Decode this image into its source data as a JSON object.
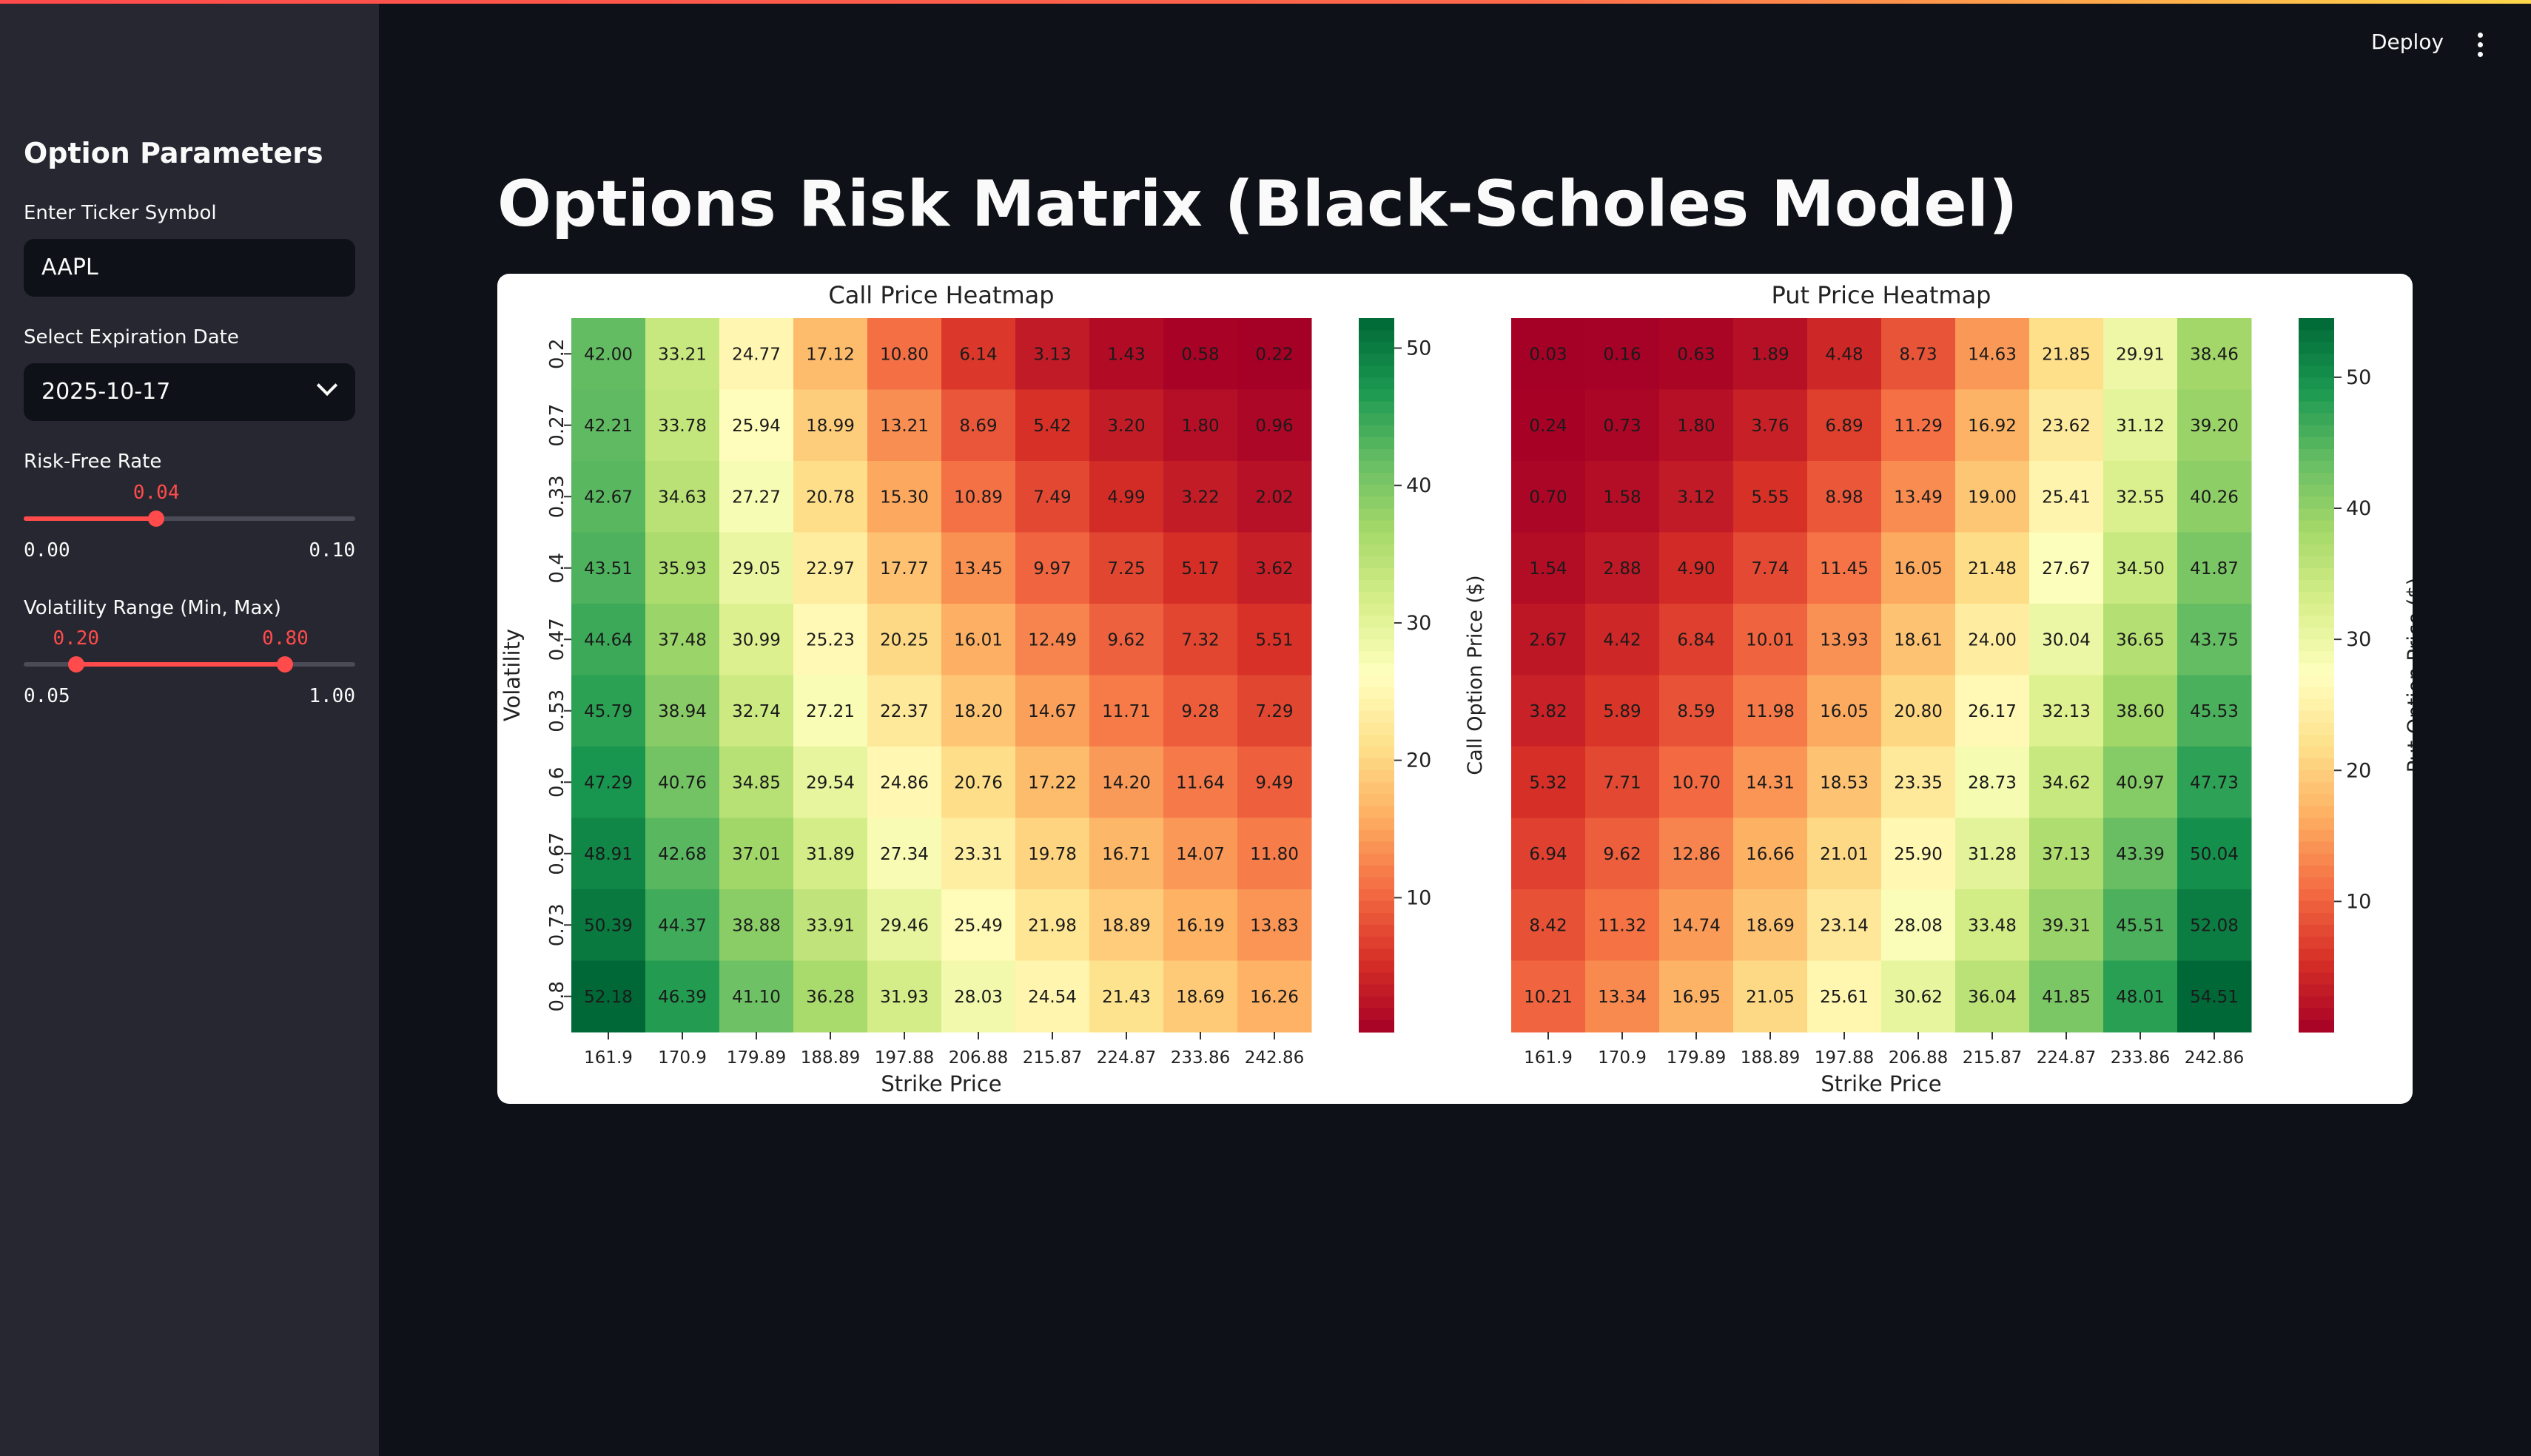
{
  "header": {
    "deploy_label": "Deploy",
    "menu_icon": "kebab-menu-icon"
  },
  "sidebar": {
    "title": "Option Parameters",
    "ticker": {
      "label": "Enter Ticker Symbol",
      "value": "AAPL"
    },
    "expiration": {
      "label": "Select Expiration Date",
      "value": "2025-10-17"
    },
    "risk_free_rate": {
      "label": "Risk-Free Rate",
      "value": "0.04",
      "min": "0.00",
      "max": "0.10",
      "fraction": 0.4
    },
    "volatility_range": {
      "label": "Volatility Range (Min, Max)",
      "low": "0.20",
      "high": "0.80",
      "min": "0.05",
      "max": "1.00",
      "low_fraction": 0.158,
      "high_fraction": 0.789
    }
  },
  "main": {
    "title": "Options Risk Matrix (Black-Scholes Model)"
  },
  "colors": {
    "accent": "#ff4b4b",
    "background": "#0e1117",
    "sidebar": "#262730"
  },
  "chart_data": [
    {
      "type": "heatmap",
      "title": "Call Price Heatmap",
      "xlabel": "Strike Price",
      "ylabel": "Volatility",
      "colorbar_label": "Call Option Price ($)",
      "colorbar_ticks": [
        10,
        20,
        30,
        40,
        50
      ],
      "colormap": "RdYlGn",
      "x": [
        "161.9",
        "170.9",
        "179.89",
        "188.89",
        "197.88",
        "206.88",
        "215.87",
        "224.87",
        "233.86",
        "242.86"
      ],
      "y": [
        "0.2",
        "0.27",
        "0.33",
        "0.4",
        "0.47",
        "0.53",
        "0.6",
        "0.67",
        "0.73",
        "0.8"
      ],
      "values": [
        [
          "42.00",
          "33.21",
          "24.77",
          "17.12",
          "10.80",
          "6.14",
          "3.13",
          "1.43",
          "0.58",
          "0.22"
        ],
        [
          "42.21",
          "33.78",
          "25.94",
          "18.99",
          "13.21",
          "8.69",
          "5.42",
          "3.20",
          "1.80",
          "0.96"
        ],
        [
          "42.67",
          "34.63",
          "27.27",
          "20.78",
          "15.30",
          "10.89",
          "7.49",
          "4.99",
          "3.22",
          "2.02"
        ],
        [
          "43.51",
          "35.93",
          "29.05",
          "22.97",
          "17.77",
          "13.45",
          "9.97",
          "7.25",
          "5.17",
          "3.62"
        ],
        [
          "44.64",
          "37.48",
          "30.99",
          "25.23",
          "20.25",
          "16.01",
          "12.49",
          "9.62",
          "7.32",
          "5.51"
        ],
        [
          "45.79",
          "38.94",
          "32.74",
          "27.21",
          "22.37",
          "18.20",
          "14.67",
          "11.71",
          "9.28",
          "7.29"
        ],
        [
          "47.29",
          "40.76",
          "34.85",
          "29.54",
          "24.86",
          "20.76",
          "17.22",
          "14.20",
          "11.64",
          "9.49"
        ],
        [
          "48.91",
          "42.68",
          "37.01",
          "31.89",
          "27.34",
          "23.31",
          "19.78",
          "16.71",
          "14.07",
          "11.80"
        ],
        [
          "50.39",
          "44.37",
          "38.88",
          "33.91",
          "29.46",
          "25.49",
          "21.98",
          "18.89",
          "16.19",
          "13.83"
        ],
        [
          "52.18",
          "46.39",
          "41.10",
          "36.28",
          "31.93",
          "28.03",
          "24.54",
          "21.43",
          "18.69",
          "16.26"
        ]
      ]
    },
    {
      "type": "heatmap",
      "title": "Put Price Heatmap",
      "xlabel": "Strike Price",
      "ylabel": "",
      "colorbar_label": "Put Option Price ($)",
      "colorbar_ticks": [
        10,
        20,
        30,
        40,
        50
      ],
      "colormap": "RdYlGn",
      "x": [
        "161.9",
        "170.9",
        "179.89",
        "188.89",
        "197.88",
        "206.88",
        "215.87",
        "224.87",
        "233.86",
        "242.86"
      ],
      "y": [],
      "values": [
        [
          "0.03",
          "0.16",
          "0.63",
          "1.89",
          "4.48",
          "8.73",
          "14.63",
          "21.85",
          "29.91",
          "38.46"
        ],
        [
          "0.24",
          "0.73",
          "1.80",
          "3.76",
          "6.89",
          "11.29",
          "16.92",
          "23.62",
          "31.12",
          "39.20"
        ],
        [
          "0.70",
          "1.58",
          "3.12",
          "5.55",
          "8.98",
          "13.49",
          "19.00",
          "25.41",
          "32.55",
          "40.26"
        ],
        [
          "1.54",
          "2.88",
          "4.90",
          "7.74",
          "11.45",
          "16.05",
          "21.48",
          "27.67",
          "34.50",
          "41.87"
        ],
        [
          "2.67",
          "4.42",
          "6.84",
          "10.01",
          "13.93",
          "18.61",
          "24.00",
          "30.04",
          "36.65",
          "43.75"
        ],
        [
          "3.82",
          "5.89",
          "8.59",
          "11.98",
          "16.05",
          "20.80",
          "26.17",
          "32.13",
          "38.60",
          "45.53"
        ],
        [
          "5.32",
          "7.71",
          "10.70",
          "14.31",
          "18.53",
          "23.35",
          "28.73",
          "34.62",
          "40.97",
          "47.73"
        ],
        [
          "6.94",
          "9.62",
          "12.86",
          "16.66",
          "21.01",
          "25.90",
          "31.28",
          "37.13",
          "43.39",
          "50.04"
        ],
        [
          "8.42",
          "11.32",
          "14.74",
          "18.69",
          "23.14",
          "28.08",
          "33.48",
          "39.31",
          "45.51",
          "52.08"
        ],
        [
          "10.21",
          "13.34",
          "16.95",
          "21.05",
          "25.61",
          "30.62",
          "36.04",
          "41.85",
          "48.01",
          "54.51"
        ]
      ]
    }
  ]
}
